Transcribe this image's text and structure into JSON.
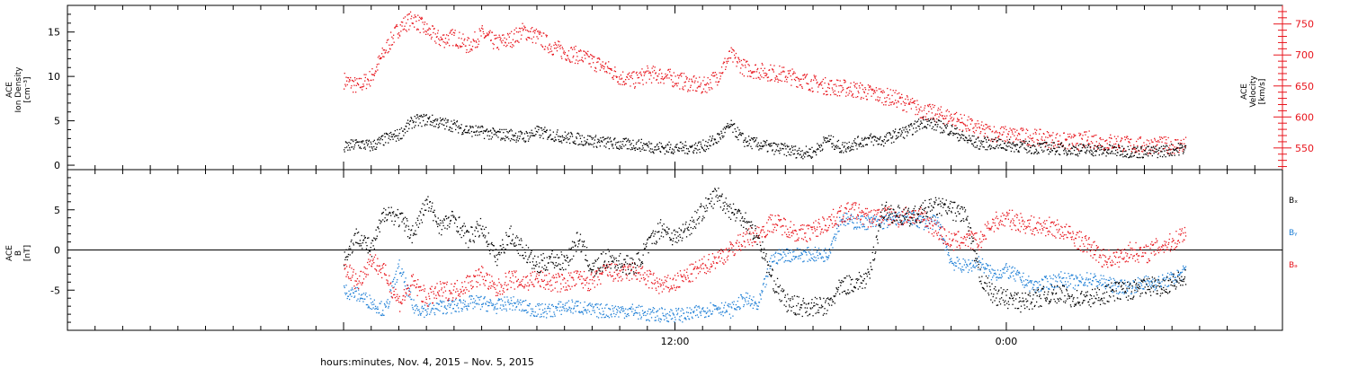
{
  "chart_data": [
    {
      "type": "scatter",
      "panel": "top",
      "ylabel_left_lines": [
        "ACE",
        "Ion Density",
        "[cm⁻³]"
      ],
      "ylabel_right_lines": [
        "ACE",
        "Velocity",
        "[km/s]"
      ],
      "ylim_left": [
        -0.5,
        18
      ],
      "ylim_right": [
        515,
        780
      ],
      "yticks_left": [
        0,
        5,
        10,
        15
      ],
      "yticks_right": [
        550,
        600,
        650,
        700,
        750
      ],
      "colors": {
        "density": "#000000",
        "velocity": "#e8141c"
      },
      "series": [
        {
          "axis": "left",
          "x": [
            0.0,
            0.5,
            1.0,
            1.5,
            2.0,
            2.5,
            3.0,
            3.5,
            4.0,
            4.5,
            5.0,
            5.5,
            6.0,
            6.5,
            7.0,
            7.5,
            8.0,
            8.5,
            9.0,
            9.5,
            10.0,
            10.5,
            11.0,
            11.5,
            12.0,
            12.5,
            13.0,
            13.5,
            14.0,
            14.5,
            15.0,
            15.5,
            16.0,
            16.5,
            17.0,
            17.5,
            18.0,
            18.5,
            19.0,
            19.5,
            20.0,
            20.5,
            21.0,
            21.5,
            22.0,
            22.5,
            23.0,
            23.5,
            24.0,
            24.5,
            25.0,
            25.5,
            26.0,
            26.5,
            27.0,
            27.5,
            28.0,
            28.5,
            29.0,
            29.5,
            30.0,
            30.5
          ],
          "y": [
            2.0,
            2.5,
            2.2,
            3.0,
            3.5,
            5.0,
            5.2,
            4.8,
            4.5,
            4.0,
            3.8,
            3.5,
            3.5,
            3.2,
            3.8,
            3.5,
            3.2,
            3.0,
            2.8,
            2.6,
            2.4,
            2.4,
            2.2,
            2.0,
            2.0,
            2.0,
            2.2,
            3.0,
            4.5,
            2.8,
            2.4,
            2.0,
            1.8,
            1.5,
            1.5,
            3.0,
            2.0,
            2.5,
            3.0,
            2.8,
            3.5,
            4.0,
            5.0,
            4.5,
            4.0,
            3.0,
            2.5,
            2.5,
            2.3,
            2.2,
            2.0,
            2.0,
            1.9,
            1.8,
            1.8,
            1.7,
            1.7,
            1.6,
            1.5,
            1.6,
            1.8,
            2.0
          ]
        },
        {
          "axis": "right",
          "x": [
            0.0,
            0.5,
            1.0,
            1.5,
            2.0,
            2.5,
            3.0,
            3.5,
            4.0,
            4.5,
            5.0,
            5.5,
            6.0,
            6.5,
            7.0,
            7.5,
            8.0,
            8.5,
            9.0,
            9.5,
            10.0,
            10.5,
            11.0,
            11.5,
            12.0,
            12.5,
            13.0,
            13.5,
            14.0,
            14.5,
            15.0,
            15.5,
            16.0,
            16.5,
            17.0,
            17.5,
            18.0,
            18.5,
            19.0,
            19.5,
            20.0,
            20.5,
            21.0,
            21.5,
            22.0,
            22.5,
            23.0,
            23.5,
            24.0,
            24.5,
            25.0,
            25.5,
            26.0,
            26.5,
            27.0,
            27.5,
            28.0,
            28.5,
            29.0,
            29.5,
            30.0,
            30.5
          ],
          "y": [
            660,
            650,
            665,
            710,
            745,
            760,
            740,
            725,
            730,
            715,
            735,
            720,
            725,
            740,
            730,
            715,
            705,
            700,
            690,
            680,
            665,
            660,
            670,
            668,
            662,
            655,
            650,
            665,
            700,
            680,
            675,
            672,
            668,
            662,
            655,
            650,
            648,
            645,
            640,
            635,
            630,
            620,
            610,
            605,
            600,
            590,
            580,
            575,
            572,
            570,
            568,
            565,
            562,
            560,
            565,
            560,
            560,
            555,
            555,
            555,
            555,
            555
          ]
        }
      ]
    },
    {
      "type": "scatter",
      "panel": "bottom",
      "ylabel_left_lines": [
        "ACE",
        "B",
        "[nT]"
      ],
      "ylim": [
        -10,
        10
      ],
      "yticks": [
        -5,
        0,
        5
      ],
      "zero_line": true,
      "legend": [
        "Bₓ",
        "Bᵧ",
        "Bₔ"
      ],
      "legend_placement": "right",
      "colors": {
        "Bx": "#000000",
        "By": "#1e7fd6",
        "Bz": "#e8141c"
      },
      "series": [
        {
          "name": "Bₓ",
          "x": [
            0.0,
            0.5,
            1.0,
            1.5,
            2.0,
            2.5,
            3.0,
            3.5,
            4.0,
            4.5,
            5.0,
            5.5,
            6.0,
            6.5,
            7.0,
            7.5,
            8.0,
            8.5,
            9.0,
            9.5,
            10.0,
            10.5,
            11.0,
            11.5,
            12.0,
            12.5,
            13.0,
            13.5,
            14.0,
            14.5,
            15.0,
            15.5,
            16.0,
            16.5,
            17.0,
            17.5,
            18.0,
            18.5,
            19.0,
            19.5,
            20.0,
            20.5,
            21.0,
            21.5,
            22.0,
            22.5,
            23.0,
            23.5,
            24.0,
            24.5,
            25.0,
            25.5,
            26.0,
            26.5,
            27.0,
            27.5,
            28.0,
            28.5,
            29.0,
            29.5,
            30.0,
            30.5
          ],
          "y": [
            -1.0,
            2.0,
            0.0,
            5.0,
            4.0,
            2.0,
            6.0,
            3.0,
            4.0,
            1.5,
            3.0,
            -1.0,
            2.0,
            0.0,
            -2.0,
            -1.0,
            -1.5,
            1.5,
            -2.5,
            -1.0,
            -1.5,
            -2.0,
            0.5,
            3.0,
            1.5,
            3.0,
            5.0,
            7.0,
            5.0,
            4.0,
            1.5,
            -3.5,
            -6.5,
            -7.0,
            -7.0,
            -7.0,
            -4.5,
            -4.0,
            -3.5,
            5.0,
            4.5,
            4.0,
            5.0,
            5.5,
            5.0,
            4.5,
            -3.0,
            -5.5,
            -6.0,
            -6.5,
            -6.0,
            -5.5,
            -5.5,
            -6.0,
            -6.0,
            -5.5,
            -5.0,
            -5.0,
            -4.5,
            -4.5,
            -4.0,
            -3.5
          ]
        },
        {
          "name": "Bᵧ",
          "x": [
            0.0,
            0.5,
            1.0,
            1.5,
            2.0,
            2.5,
            3.0,
            3.5,
            4.0,
            4.5,
            5.0,
            5.5,
            6.0,
            6.5,
            7.0,
            7.5,
            8.0,
            8.5,
            9.0,
            9.5,
            10.0,
            10.5,
            11.0,
            11.5,
            12.0,
            12.5,
            13.0,
            13.5,
            14.0,
            14.5,
            15.0,
            15.5,
            16.0,
            16.5,
            17.0,
            17.5,
            18.0,
            18.5,
            19.0,
            19.5,
            20.0,
            20.5,
            21.0,
            21.5,
            22.0,
            22.5,
            23.0,
            23.5,
            24.0,
            24.5,
            25.0,
            25.5,
            26.0,
            26.5,
            27.0,
            27.5,
            28.0,
            28.5,
            29.0,
            29.5,
            30.0,
            30.5
          ],
          "y": [
            -5.0,
            -5.5,
            -6.5,
            -7.5,
            -2.0,
            -7.0,
            -7.5,
            -7.0,
            -7.0,
            -6.5,
            -6.5,
            -7.0,
            -6.5,
            -7.0,
            -7.5,
            -7.5,
            -7.0,
            -7.0,
            -7.5,
            -7.5,
            -7.5,
            -7.5,
            -8.0,
            -8.0,
            -8.0,
            -8.0,
            -7.5,
            -7.0,
            -7.5,
            -6.0,
            -7.0,
            -1.0,
            -0.5,
            -0.5,
            -0.5,
            -0.5,
            4.0,
            3.5,
            3.5,
            3.5,
            4.0,
            4.0,
            3.5,
            3.5,
            -1.5,
            -2.0,
            -1.5,
            -3.0,
            -2.5,
            -3.5,
            -4.5,
            -4.0,
            -3.5,
            -4.0,
            -3.5,
            -4.0,
            -4.5,
            -4.5,
            -4.0,
            -4.0,
            -3.5,
            -2.5
          ]
        },
        {
          "name": "Bₔ",
          "x": [
            0.0,
            0.5,
            1.0,
            1.5,
            2.0,
            2.5,
            3.0,
            3.5,
            4.0,
            4.5,
            5.0,
            5.5,
            6.0,
            6.5,
            7.0,
            7.5,
            8.0,
            8.5,
            9.0,
            9.5,
            10.0,
            10.5,
            11.0,
            11.5,
            12.0,
            12.5,
            13.0,
            13.5,
            14.0,
            14.5,
            15.0,
            15.5,
            16.0,
            16.5,
            17.0,
            17.5,
            18.0,
            18.5,
            19.0,
            19.5,
            20.0,
            20.5,
            21.0,
            21.5,
            22.0,
            22.5,
            23.0,
            23.5,
            24.0,
            24.5,
            25.0,
            25.5,
            26.0,
            26.5,
            27.0,
            27.5,
            28.0,
            28.5,
            29.0,
            29.5,
            30.0,
            30.5
          ],
          "y": [
            -2.0,
            -4.0,
            -1.0,
            -3.0,
            -6.5,
            -4.0,
            -6.0,
            -5.0,
            -5.0,
            -4.0,
            -3.0,
            -5.0,
            -3.5,
            -4.0,
            -3.5,
            -4.0,
            -4.0,
            -3.5,
            -4.0,
            -2.5,
            -3.0,
            -2.5,
            -3.5,
            -4.5,
            -4.0,
            -3.0,
            -2.0,
            -1.0,
            0.0,
            1.5,
            2.0,
            3.5,
            3.0,
            2.0,
            2.5,
            3.5,
            4.5,
            5.0,
            4.0,
            4.5,
            4.0,
            4.5,
            4.0,
            2.5,
            1.0,
            1.5,
            1.0,
            3.5,
            4.0,
            3.5,
            3.0,
            3.0,
            2.5,
            1.5,
            0.5,
            -1.0,
            -1.0,
            0.0,
            -0.5,
            0.5,
            1.0,
            2.5
          ]
        }
      ]
    }
  ],
  "x_axis": {
    "range_hours": [
      -10.0,
      34.0
    ],
    "major_tick_labels": [
      {
        "x": 12,
        "label": "12:00"
      },
      {
        "x": 24,
        "label": "0:00"
      }
    ],
    "minor_tick_step_hours": 1,
    "xlabel": "hours:minutes,  Nov.  4, 2015 – Nov.  5, 2015"
  }
}
